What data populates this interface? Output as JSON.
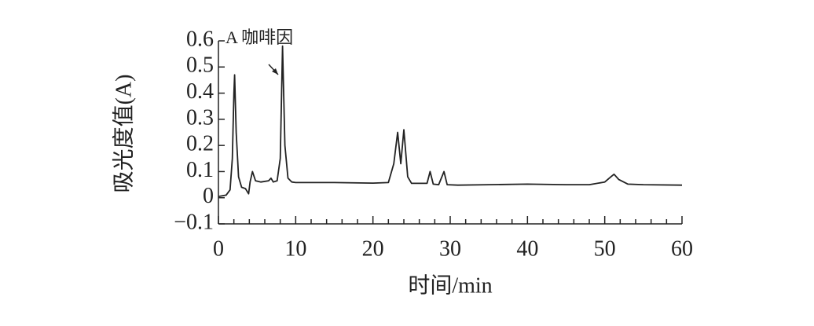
{
  "chart_data": {
    "type": "line",
    "xlabel": "时间/min",
    "ylabel": "吸光度值(A)",
    "annotation": "A 咖啡因",
    "x": [
      0,
      1,
      1.5,
      1.8,
      2.0,
      2.1,
      2.3,
      2.6,
      3.0,
      3.5,
      3.9,
      4.1,
      4.4,
      4.8,
      5.5,
      6.5,
      6.8,
      7.1,
      7.6,
      8.0,
      8.3,
      8.6,
      9.0,
      9.5,
      10,
      15,
      20,
      22,
      22.7,
      23.2,
      23.6,
      24.0,
      24.5,
      25,
      27,
      27.4,
      27.8,
      28.5,
      29.2,
      29.6,
      31,
      35,
      40,
      45,
      48,
      50,
      50.8,
      51.2,
      51.8,
      53,
      55,
      60
    ],
    "values": [
      0.005,
      0.01,
      0.03,
      0.15,
      0.4,
      0.47,
      0.25,
      0.08,
      0.04,
      0.035,
      0.015,
      0.06,
      0.1,
      0.065,
      0.06,
      0.065,
      0.075,
      0.06,
      0.065,
      0.15,
      0.58,
      0.2,
      0.075,
      0.06,
      0.058,
      0.058,
      0.056,
      0.058,
      0.13,
      0.25,
      0.13,
      0.26,
      0.08,
      0.055,
      0.055,
      0.1,
      0.052,
      0.05,
      0.1,
      0.05,
      0.048,
      0.05,
      0.052,
      0.05,
      0.05,
      0.06,
      0.08,
      0.09,
      0.07,
      0.052,
      0.05,
      0.048
    ],
    "color": "#222222",
    "xlim": [
      0,
      60
    ],
    "xticks": [
      0,
      10,
      20,
      30,
      40,
      50,
      60
    ],
    "xminorticks": [
      2,
      4,
      6,
      8,
      12,
      14,
      16,
      18,
      22,
      24,
      26,
      28,
      32,
      34,
      36,
      38,
      42,
      44,
      46,
      48,
      52,
      54,
      56,
      58
    ],
    "ylim": [
      -0.1,
      0.6
    ],
    "yticks": [
      {
        "value": -0.1,
        "label": "−0.1"
      },
      0,
      0.1,
      0.2,
      0.3,
      0.4,
      0.5,
      0.6
    ],
    "grid": false
  }
}
